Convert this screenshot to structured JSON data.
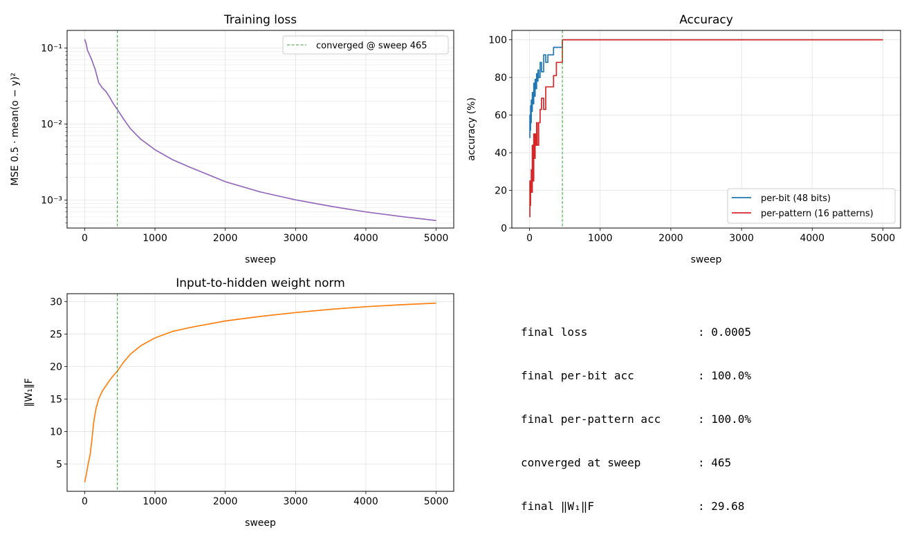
{
  "chart_data": [
    {
      "type": "line",
      "title": "Training loss",
      "xlabel": "sweep",
      "ylabel": "MSE  0.5 · mean(o − y)²",
      "yscale": "log",
      "xlim": [
        -250,
        5250
      ],
      "ylim": [
        0.00043,
        0.17
      ],
      "xticks": [
        0,
        1000,
        2000,
        3000,
        4000,
        5000
      ],
      "yticks": [
        {
          "value": 0.1,
          "label": "10⁻¹"
        },
        {
          "value": 0.01,
          "label": "10⁻²"
        },
        {
          "value": 0.001,
          "label": "10⁻³"
        }
      ],
      "grid": true,
      "legend": "upper-right",
      "vline": {
        "x": 465,
        "label": "converged @ sweep 465",
        "color": "#2ca02c"
      },
      "series": [
        {
          "color": "#9467bd",
          "x": [
            0,
            20,
            40,
            60,
            100,
            150,
            200,
            250,
            300,
            350,
            400,
            465,
            550,
            650,
            800,
            1000,
            1250,
            1500,
            2000,
            2500,
            3000,
            3500,
            4000,
            4500,
            5000
          ],
          "y": [
            0.13,
            0.115,
            0.093,
            0.085,
            0.07,
            0.052,
            0.035,
            0.03,
            0.027,
            0.023,
            0.019,
            0.0155,
            0.0118,
            0.0087,
            0.0063,
            0.0046,
            0.0034,
            0.0027,
            0.00175,
            0.00128,
            0.00101,
            0.00083,
            0.0007,
            0.00061,
            0.00054
          ]
        }
      ]
    },
    {
      "type": "line",
      "title": "Accuracy",
      "xlabel": "sweep",
      "ylabel": "accuracy (%)",
      "xlim": [
        -250,
        5250
      ],
      "ylim": [
        0,
        105
      ],
      "xticks": [
        0,
        1000,
        2000,
        3000,
        4000,
        5000
      ],
      "yticks": [
        0,
        20,
        40,
        60,
        80,
        100
      ],
      "grid": true,
      "legend": "lower-right",
      "vline": {
        "x": 465,
        "color": "#2ca02c"
      },
      "series": [
        {
          "name": "per-bit (48 bits)",
          "color": "#1f77b4",
          "x": [
            0,
            5,
            10,
            15,
            20,
            25,
            30,
            40,
            50,
            60,
            70,
            80,
            90,
            100,
            110,
            120,
            130,
            150,
            170,
            200,
            230,
            260,
            300,
            340,
            380,
            420,
            465,
            600,
            1000,
            2000,
            3000,
            4000,
            5000
          ],
          "y": [
            48,
            60,
            52,
            65,
            56,
            68,
            62,
            72,
            66,
            77,
            70,
            79,
            74,
            82,
            78,
            84,
            80,
            88,
            83,
            92,
            88,
            92,
            92,
            96,
            96,
            96,
            100,
            100,
            100,
            100,
            100,
            100,
            100
          ]
        },
        {
          "name": "per-pattern (16 patterns)",
          "color": "#d62728",
          "x": [
            0,
            5,
            10,
            15,
            20,
            25,
            30,
            40,
            50,
            60,
            70,
            80,
            90,
            100,
            110,
            130,
            150,
            170,
            200,
            230,
            260,
            300,
            340,
            380,
            420,
            465,
            600,
            1000,
            2000,
            3000,
            4000,
            5000
          ],
          "y": [
            6,
            25,
            12,
            25,
            19,
            31,
            19,
            44,
            25,
            50,
            37,
            50,
            44,
            56,
            44,
            56,
            63,
            69,
            63,
            75,
            75,
            75,
            81,
            88,
            88,
            100,
            100,
            100,
            100,
            100,
            100,
            100
          ]
        }
      ]
    },
    {
      "type": "line",
      "title": "Input-to-hidden weight norm",
      "xlabel": "sweep",
      "ylabel": "‖W₁‖F",
      "xlim": [
        -250,
        5250
      ],
      "ylim": [
        0.8,
        31.2
      ],
      "xticks": [
        0,
        1000,
        2000,
        3000,
        4000,
        5000
      ],
      "yticks": [
        5,
        10,
        15,
        20,
        25,
        30
      ],
      "grid": true,
      "vline": {
        "x": 465,
        "color": "#2ca02c"
      },
      "series": [
        {
          "color": "#ff7f0e",
          "x": [
            0,
            20,
            50,
            80,
            100,
            130,
            160,
            200,
            250,
            300,
            350,
            400,
            465,
            550,
            650,
            800,
            1000,
            1250,
            1500,
            2000,
            2500,
            3000,
            3500,
            4000,
            4500,
            5000
          ],
          "y": [
            2.2,
            3.2,
            5.0,
            6.6,
            8.5,
            11.5,
            13.5,
            15.0,
            16.2,
            17.0,
            17.8,
            18.5,
            19.3,
            20.6,
            21.9,
            23.2,
            24.4,
            25.4,
            26.0,
            27.0,
            27.7,
            28.3,
            28.8,
            29.2,
            29.5,
            29.75
          ]
        }
      ]
    }
  ],
  "summary": [
    {
      "key": "final loss",
      "value": ": 0.0005"
    },
    {
      "key": "final per-bit acc",
      "value": ": 100.0%"
    },
    {
      "key": "final per-pattern acc",
      "value": ": 100.0%"
    },
    {
      "key": "converged at sweep",
      "value": ": 465"
    },
    {
      "key": "final ‖W₁‖F",
      "value": ": 29.68"
    }
  ]
}
